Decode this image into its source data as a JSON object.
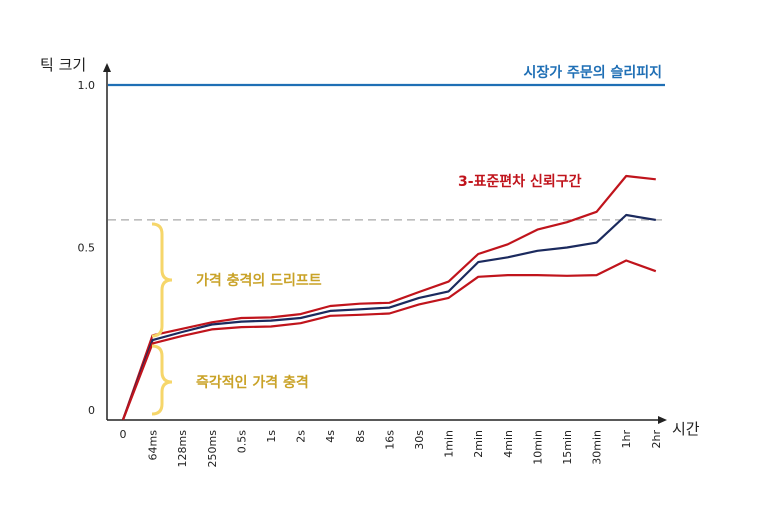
{
  "chart_data": {
    "type": "line",
    "title": "",
    "xlabel": "시간",
    "ylabel": "틱 크기",
    "x_ticks": [
      "0",
      "64ms",
      "128ms",
      "250ms",
      "0.5s",
      "1s",
      "2s",
      "4s",
      "8s",
      "16s",
      "30s",
      "1min",
      "2min",
      "4min",
      "10min",
      "15min",
      "30min",
      "1hr",
      "2hr"
    ],
    "y_ticks": [
      {
        "value": 0,
        "label": "0"
      },
      {
        "value": 0.5,
        "label": "0.5"
      },
      {
        "value": 1.0,
        "label": "1.0"
      }
    ],
    "ylim": [
      -0.03,
      1.07
    ],
    "grid": false,
    "series": [
      {
        "name": "",
        "color": "#c0141c",
        "role": "upper_band",
        "values": [
          -0.03,
          0.23,
          0.25,
          0.27,
          0.283,
          0.285,
          0.295,
          0.32,
          0.327,
          0.33,
          0.363,
          0.395,
          0.48,
          0.51,
          0.555,
          0.578,
          0.61,
          0.72,
          0.71
        ]
      },
      {
        "name": "",
        "color": "#1b2a5e",
        "role": "mean",
        "values": [
          -0.03,
          0.215,
          0.24,
          0.263,
          0.272,
          0.275,
          0.283,
          0.305,
          0.31,
          0.315,
          0.345,
          0.365,
          0.455,
          0.47,
          0.49,
          0.5,
          0.515,
          0.6,
          0.585
        ]
      },
      {
        "name": "",
        "color": "#c0141c",
        "role": "lower_band",
        "values": [
          -0.03,
          0.205,
          0.228,
          0.248,
          0.255,
          0.257,
          0.267,
          0.29,
          0.293,
          0.297,
          0.325,
          0.345,
          0.41,
          0.415,
          0.415,
          0.413,
          0.415,
          0.46,
          0.427
        ]
      }
    ],
    "reference_lines": [
      {
        "value": 1.0,
        "color": "#1f6fb5",
        "style": "solid",
        "label": "시장가 주문의 슬리피지"
      },
      {
        "value": 0.585,
        "color": "#a8a8a8",
        "style": "dashed",
        "label": ""
      }
    ],
    "annotations": [
      {
        "text": "3-표준편차 신뢰구간",
        "color": "#c0141c"
      },
      {
        "text": "가격 충격의 드리프트",
        "color": "#c9a227",
        "range": [
          0.23,
          0.585
        ]
      },
      {
        "text": "즉각적인 가격 충격",
        "color": "#c9a227",
        "range": [
          0.0,
          0.2
        ]
      }
    ],
    "colors": {
      "brace": "#f6d66a",
      "axis": "#222222"
    }
  }
}
